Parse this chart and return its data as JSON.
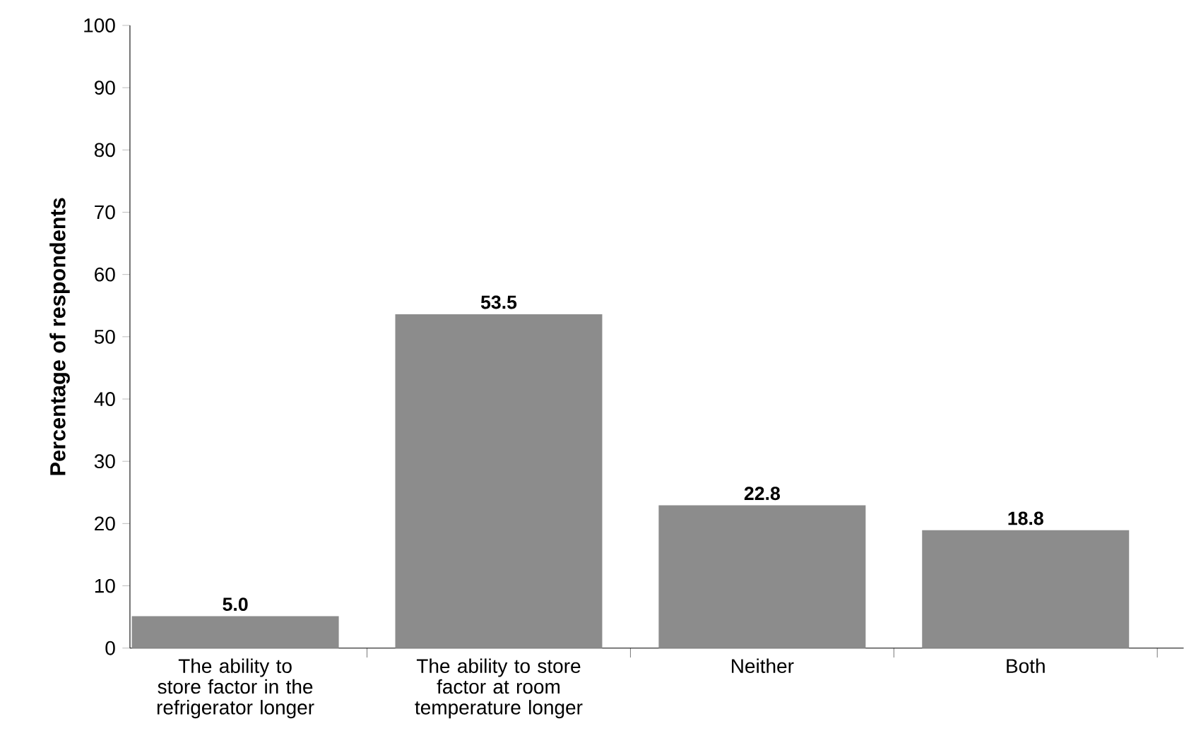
{
  "chart_data": {
    "type": "bar",
    "ylabel": "Percentage of respondents",
    "categories": [
      "The ability to store factor in the refrigerator longer",
      "The ability to store factor at room temperature longer",
      "Neither",
      "Both"
    ],
    "values": [
      5.0,
      53.5,
      22.8,
      18.8
    ],
    "value_labels": [
      "5.0",
      "53.5",
      "22.8",
      "18.8"
    ],
    "color": "#8c8c8c",
    "ylim": [
      0,
      100
    ],
    "yticks": [
      0,
      10,
      20,
      30,
      40,
      50,
      60,
      70,
      80,
      90,
      100
    ]
  }
}
